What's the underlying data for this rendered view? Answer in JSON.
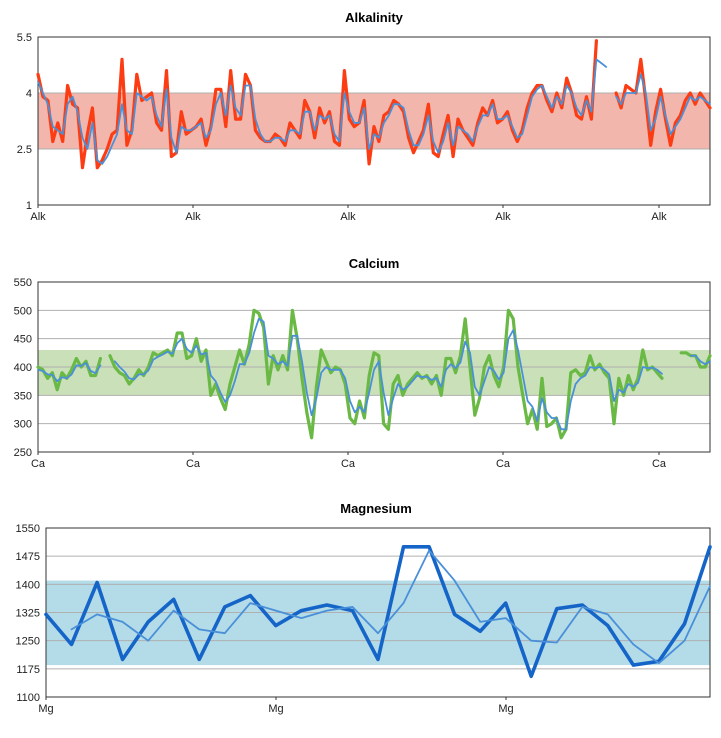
{
  "chart_data": [
    {
      "type": "line",
      "title": "Alkalinity",
      "xlabel": "",
      "ylabel": "",
      "ylim": [
        1,
        5.5
      ],
      "yticks": [
        "1",
        "2.5",
        "4",
        "5.5"
      ],
      "xticks": [
        "Alk",
        "Alk",
        "Alk",
        "Alk",
        "Alk"
      ],
      "band": [
        2.5,
        4
      ],
      "grid": true,
      "legend": "none",
      "colors": {
        "main": "#fc3d14",
        "trend": "#4a90d9",
        "band": "#f2b6ad"
      },
      "series": [
        {
          "role": "main",
          "values": [
            4.5,
            3.9,
            3.8,
            2.7,
            3.2,
            2.7,
            4.2,
            3.7,
            3.6,
            2.0,
            2.9,
            3.6,
            2.0,
            2.2,
            2.5,
            2.9,
            3.0,
            4.9,
            2.6,
            3.0,
            4.5,
            3.8,
            3.9,
            4.0,
            3.2,
            3.0,
            4.6,
            2.3,
            2.4,
            3.5,
            2.9,
            3.0,
            3.1,
            3.3,
            2.6,
            3.1,
            4.1,
            4.1,
            3.1,
            4.6,
            3.3,
            3.3,
            4.5,
            4.2,
            3.0,
            2.8,
            2.7,
            2.7,
            2.9,
            2.8,
            2.6,
            3.2,
            3.0,
            2.8,
            3.8,
            3.5,
            2.8,
            3.6,
            3.2,
            3.5,
            2.7,
            2.6,
            4.6,
            3.3,
            3.1,
            3.2,
            3.8,
            2.1,
            3.1,
            2.7,
            3.4,
            3.5,
            3.8,
            3.7,
            3.5,
            2.8,
            2.4,
            2.7,
            3.0,
            3.7,
            2.4,
            2.3,
            2.9,
            3.4,
            2.3,
            3.3,
            3.0,
            2.8,
            2.6,
            3.2,
            3.6,
            3.4,
            3.8,
            3.2,
            3.3,
            3.5,
            3.0,
            2.7,
            3.0,
            3.6,
            4.0,
            4.2,
            4.2,
            3.8,
            3.5,
            4.0,
            3.6,
            4.4,
            4.0,
            3.4,
            3.3,
            3.9,
            3.3,
            5.4,
            null,
            null,
            null,
            4.0,
            3.6,
            4.2,
            4.1,
            4.0,
            4.9,
            3.8,
            2.6,
            3.5,
            4.1,
            3.3,
            2.6,
            3.2,
            3.4,
            3.8,
            4.0,
            3.7,
            4.0,
            3.8,
            3.6
          ]
        },
        {
          "role": "trend",
          "values": [
            4.3,
            4.0,
            3.7,
            3.1,
            3.0,
            2.9,
            3.7,
            3.9,
            3.5,
            2.8,
            2.5,
            3.2,
            2.2,
            2.1,
            2.3,
            2.6,
            2.9,
            3.7,
            3.0,
            2.9,
            4.0,
            3.9,
            3.8,
            3.9,
            3.4,
            3.1,
            4.1,
            2.8,
            2.4,
            3.1,
            3.0,
            3.0,
            3.1,
            3.2,
            2.8,
            3.0,
            3.7,
            4.0,
            3.4,
            4.2,
            3.6,
            3.4,
            4.2,
            4.2,
            3.3,
            2.9,
            2.7,
            2.7,
            2.8,
            2.8,
            2.7,
            3.0,
            3.0,
            2.9,
            3.5,
            3.5,
            3.0,
            3.4,
            3.3,
            3.4,
            2.9,
            2.7,
            4.0,
            3.5,
            3.2,
            3.2,
            3.6,
            2.5,
            2.9,
            2.8,
            3.2,
            3.4,
            3.7,
            3.7,
            3.6,
            3.0,
            2.6,
            2.6,
            2.9,
            3.4,
            2.7,
            2.4,
            2.7,
            3.2,
            2.6,
            3.1,
            3.0,
            2.9,
            2.7,
            3.1,
            3.4,
            3.4,
            3.7,
            3.3,
            3.3,
            3.4,
            3.1,
            2.8,
            2.9,
            3.4,
            3.9,
            4.1,
            4.2,
            3.9,
            3.6,
            3.9,
            3.7,
            4.2,
            4.0,
            3.6,
            3.4,
            3.8,
            3.5,
            4.9,
            4.8,
            4.7,
            null,
            3.9,
            3.7,
            4.0,
            4.0,
            4.0,
            4.5,
            4.0,
            3.0,
            3.3,
            3.9,
            3.4,
            2.9,
            3.1,
            3.3,
            3.6,
            3.9,
            3.8,
            3.9,
            3.8,
            3.7
          ]
        }
      ]
    },
    {
      "type": "line",
      "title": "Calcium",
      "xlabel": "",
      "ylabel": "",
      "ylim": [
        250,
        550
      ],
      "yticks": [
        "250",
        "300",
        "350",
        "400",
        "450",
        "500",
        "550"
      ],
      "xticks": [
        "Ca",
        "Ca",
        "Ca",
        "Ca",
        "Ca"
      ],
      "band": [
        350,
        430
      ],
      "grid": true,
      "legend": "none",
      "colors": {
        "main": "#6ab945",
        "trend": "#4a90d9",
        "band": "#c9e0b8"
      },
      "series": [
        {
          "role": "main",
          "values": [
            400,
            395,
            380,
            390,
            360,
            390,
            380,
            395,
            415,
            400,
            410,
            385,
            385,
            415,
            null,
            420,
            400,
            390,
            385,
            370,
            380,
            395,
            385,
            400,
            425,
            420,
            425,
            430,
            420,
            460,
            460,
            415,
            420,
            450,
            410,
            430,
            350,
            370,
            345,
            325,
            370,
            400,
            430,
            405,
            440,
            500,
            495,
            470,
            370,
            420,
            395,
            420,
            395,
            500,
            450,
            380,
            320,
            275,
            365,
            430,
            410,
            390,
            400,
            395,
            370,
            310,
            300,
            340,
            310,
            385,
            425,
            420,
            300,
            290,
            370,
            385,
            350,
            370,
            380,
            390,
            380,
            385,
            370,
            385,
            350,
            415,
            415,
            390,
            420,
            485,
            400,
            315,
            345,
            400,
            420,
            385,
            365,
            400,
            500,
            485,
            400,
            350,
            300,
            325,
            290,
            380,
            295,
            300,
            310,
            275,
            290,
            390,
            395,
            385,
            390,
            420,
            395,
            405,
            390,
            380,
            300,
            380,
            350,
            385,
            360,
            380,
            430,
            395,
            400,
            390,
            380,
            null,
            null,
            null,
            425,
            425,
            420,
            420,
            400,
            400,
            420
          ]
        },
        {
          "role": "trend",
          "values": [
            395,
            393,
            387,
            386,
            375,
            382,
            380,
            387,
            403,
            402,
            407,
            393,
            389,
            403,
            null,
            null,
            410,
            400,
            392,
            380,
            378,
            387,
            387,
            394,
            413,
            418,
            422,
            427,
            423,
            442,
            450,
            432,
            425,
            438,
            422,
            425,
            385,
            375,
            355,
            338,
            350,
            375,
            405,
            405,
            425,
            460,
            485,
            480,
            420,
            415,
            405,
            410,
            402,
            455,
            455,
            410,
            355,
            315,
            345,
            390,
            400,
            395,
            395,
            395,
            380,
            340,
            320,
            330,
            320,
            355,
            395,
            410,
            355,
            315,
            345,
            370,
            360,
            365,
            375,
            385,
            382,
            383,
            377,
            381,
            365,
            395,
            405,
            398,
            408,
            445,
            425,
            365,
            350,
            375,
            400,
            393,
            378,
            390,
            450,
            465,
            430,
            385,
            340,
            330,
            305,
            345,
            320,
            310,
            310,
            290,
            290,
            340,
            370,
            380,
            385,
            400,
            398,
            400,
            395,
            387,
            340,
            360,
            355,
            370,
            365,
            372,
            400,
            398,
            399,
            395,
            388,
            null,
            null,
            null,
            null,
            null,
            420,
            420,
            410,
            405,
            410
          ]
        }
      ]
    },
    {
      "type": "line",
      "title": "Magnesium",
      "xlabel": "",
      "ylabel": "",
      "ylim": [
        1100,
        1550
      ],
      "yticks": [
        "1100",
        "1175",
        "1250",
        "1325",
        "1400",
        "1475",
        "1550"
      ],
      "xticks": [
        "Mg",
        "Mg",
        "Mg"
      ],
      "band": [
        1185,
        1410
      ],
      "grid": true,
      "legend": "none",
      "colors": {
        "main": "#1565c8",
        "trend": "#4a90d9",
        "band": "#b3dbe8"
      },
      "series": [
        {
          "role": "main",
          "values": [
            1320,
            1240,
            1405,
            1200,
            1300,
            1360,
            1200,
            1340,
            1370,
            1290,
            1330,
            1345,
            1330,
            1200,
            1500,
            1500,
            1320,
            1275,
            1350,
            1155,
            1335,
            1345,
            1290,
            1185,
            1195,
            1295,
            1500
          ]
        },
        {
          "role": "trend",
          "values": [
            null,
            1280,
            1320,
            1300,
            1250,
            1330,
            1280,
            1270,
            1350,
            1330,
            1310,
            1330,
            1340,
            1270,
            1350,
            1490,
            1410,
            1300,
            1310,
            1250,
            1245,
            1340,
            1320,
            1240,
            1190,
            1250,
            1395
          ]
        }
      ]
    }
  ]
}
